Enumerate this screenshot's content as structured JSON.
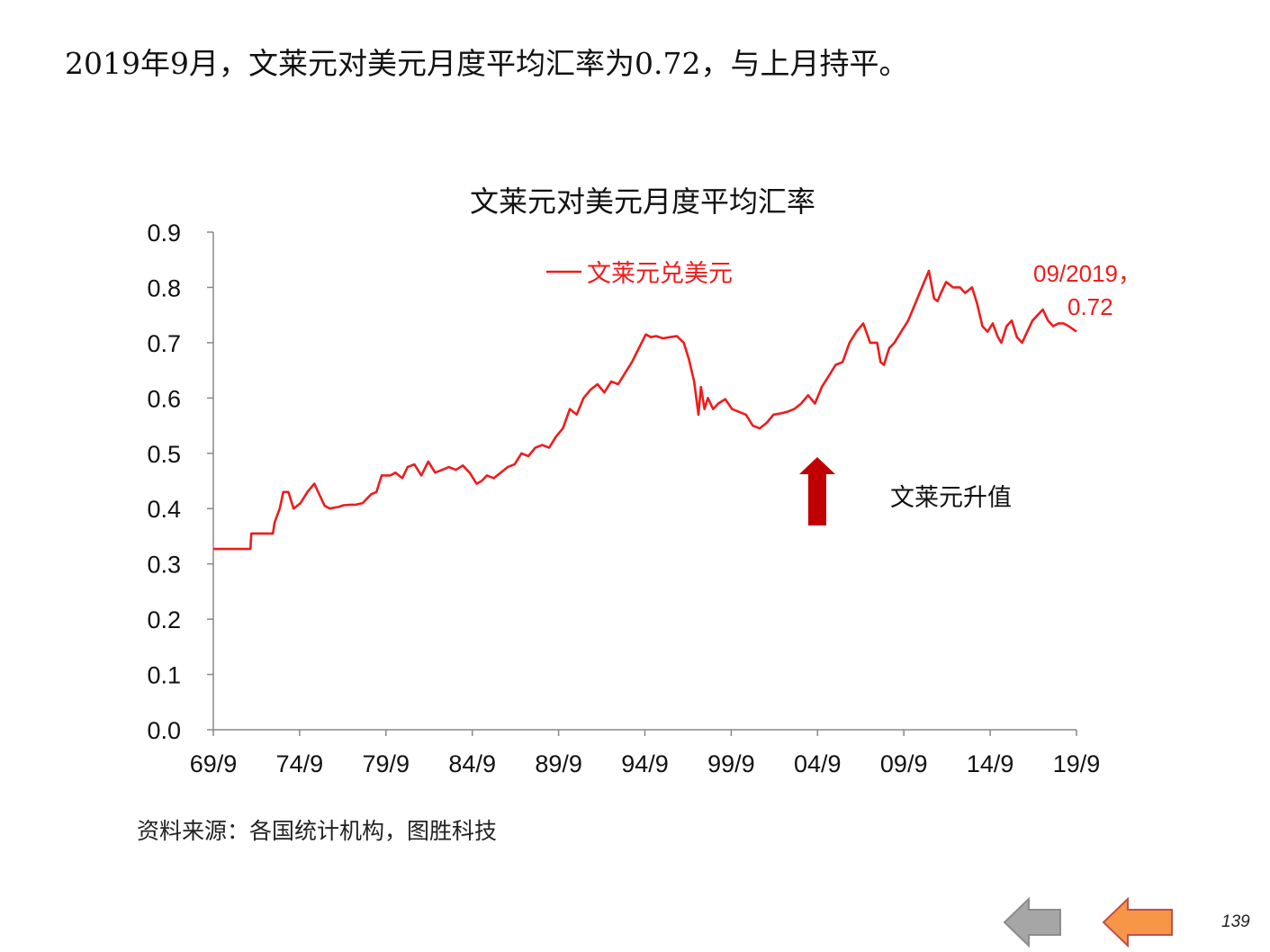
{
  "slide": {
    "headline": "2019年9月，文莱元对美元月度平均汇率为0.72，与上月持平。",
    "source": "资料来源：各国统计机构，图胜科技",
    "page_number": "139"
  },
  "colors": {
    "series": "#ee1c1c",
    "arrow": "#c00000",
    "nav_back": "#a6a6a6",
    "nav_forward": "#f79646"
  },
  "icons": {
    "back": "left-arrow-icon",
    "forward": "left-arrow-icon",
    "appreciation": "up-arrow-icon"
  },
  "chart_data": {
    "type": "line",
    "title": "文莱元对美元月度平均汇率",
    "xlabel": "",
    "ylabel": "",
    "ylim": [
      0,
      0.9
    ],
    "yticks": [
      "0.0",
      "0.1",
      "0.2",
      "0.3",
      "0.4",
      "0.5",
      "0.6",
      "0.7",
      "0.8",
      "0.9"
    ],
    "xticks": [
      "69/9",
      "74/9",
      "79/9",
      "84/9",
      "89/9",
      "94/9",
      "99/9",
      "04/9",
      "09/9",
      "14/9",
      "19/9"
    ],
    "xlim": [
      1969.75,
      2019.75
    ],
    "legend": {
      "label": "文莱元兑美元",
      "position": "top-center"
    },
    "annotations": [
      {
        "text_line1": "09/2019，",
        "text_line2": "0.72"
      },
      {
        "text": "文莱元升值",
        "marker": "up-arrow"
      }
    ],
    "series": [
      {
        "name": "文莱元兑美元",
        "x": [
          1969.75,
          1971.9,
          1971.95,
          1973.2,
          1973.3,
          1973.6,
          1973.8,
          1974.1,
          1974.4,
          1974.8,
          1975.2,
          1975.6,
          1975.9,
          1976.2,
          1976.5,
          1976.8,
          1977.0,
          1977.3,
          1977.7,
          1978.0,
          1978.4,
          1978.9,
          1979.2,
          1979.5,
          1980.0,
          1980.3,
          1980.7,
          1981.0,
          1981.4,
          1981.8,
          1982.2,
          1982.6,
          1983.0,
          1983.4,
          1983.8,
          1984.2,
          1984.6,
          1985.0,
          1985.3,
          1985.6,
          1986.0,
          1986.4,
          1986.8,
          1987.2,
          1987.6,
          1988.0,
          1988.4,
          1988.8,
          1989.2,
          1989.6,
          1990.0,
          1990.4,
          1990.8,
          1991.2,
          1991.6,
          1992.0,
          1992.4,
          1992.8,
          1993.2,
          1993.6,
          1994.0,
          1994.4,
          1994.8,
          1995.1,
          1995.4,
          1995.8,
          1996.2,
          1996.6,
          1997.0,
          1997.3,
          1997.6,
          1997.85,
          1998.0,
          1998.2,
          1998.4,
          1998.7,
          1999.0,
          1999.4,
          1999.8,
          2000.2,
          2000.6,
          2001.0,
          2001.4,
          2001.8,
          2002.2,
          2002.6,
          2003.0,
          2003.4,
          2003.8,
          2004.2,
          2004.6,
          2005.0,
          2005.4,
          2005.8,
          2006.2,
          2006.6,
          2007.0,
          2007.4,
          2007.8,
          2008.2,
          2008.4,
          2008.6,
          2008.9,
          2009.2,
          2009.6,
          2010.0,
          2010.4,
          2010.8,
          2011.2,
          2011.5,
          2011.7,
          2011.9,
          2012.2,
          2012.6,
          2013.0,
          2013.3,
          2013.7,
          2014.0,
          2014.3,
          2014.6,
          2014.9,
          2015.2,
          2015.4,
          2015.7,
          2016.0,
          2016.3,
          2016.6,
          2016.9,
          2017.2,
          2017.5,
          2017.8,
          2018.1,
          2018.4,
          2018.7,
          2019.0,
          2019.3,
          2019.75
        ],
        "values": [
          0.327,
          0.327,
          0.355,
          0.355,
          0.375,
          0.4,
          0.43,
          0.43,
          0.4,
          0.41,
          0.43,
          0.445,
          0.425,
          0.405,
          0.4,
          0.402,
          0.403,
          0.406,
          0.407,
          0.407,
          0.41,
          0.426,
          0.43,
          0.46,
          0.46,
          0.465,
          0.455,
          0.475,
          0.48,
          0.46,
          0.485,
          0.465,
          0.47,
          0.475,
          0.47,
          0.478,
          0.465,
          0.445,
          0.45,
          0.46,
          0.455,
          0.465,
          0.475,
          0.48,
          0.5,
          0.495,
          0.51,
          0.515,
          0.51,
          0.53,
          0.545,
          0.58,
          0.57,
          0.6,
          0.615,
          0.625,
          0.61,
          0.63,
          0.625,
          0.645,
          0.665,
          0.69,
          0.715,
          0.71,
          0.712,
          0.708,
          0.71,
          0.712,
          0.7,
          0.67,
          0.63,
          0.57,
          0.62,
          0.58,
          0.6,
          0.58,
          0.59,
          0.598,
          0.58,
          0.575,
          0.57,
          0.55,
          0.545,
          0.555,
          0.57,
          0.572,
          0.575,
          0.58,
          0.59,
          0.605,
          0.59,
          0.62,
          0.64,
          0.66,
          0.665,
          0.7,
          0.72,
          0.735,
          0.7,
          0.7,
          0.665,
          0.66,
          0.69,
          0.7,
          0.72,
          0.74,
          0.77,
          0.8,
          0.83,
          0.78,
          0.775,
          0.79,
          0.81,
          0.8,
          0.8,
          0.79,
          0.8,
          0.77,
          0.73,
          0.72,
          0.735,
          0.71,
          0.7,
          0.73,
          0.74,
          0.71,
          0.7,
          0.72,
          0.74,
          0.75,
          0.76,
          0.74,
          0.73,
          0.735,
          0.735,
          0.73,
          0.72
        ]
      }
    ]
  }
}
